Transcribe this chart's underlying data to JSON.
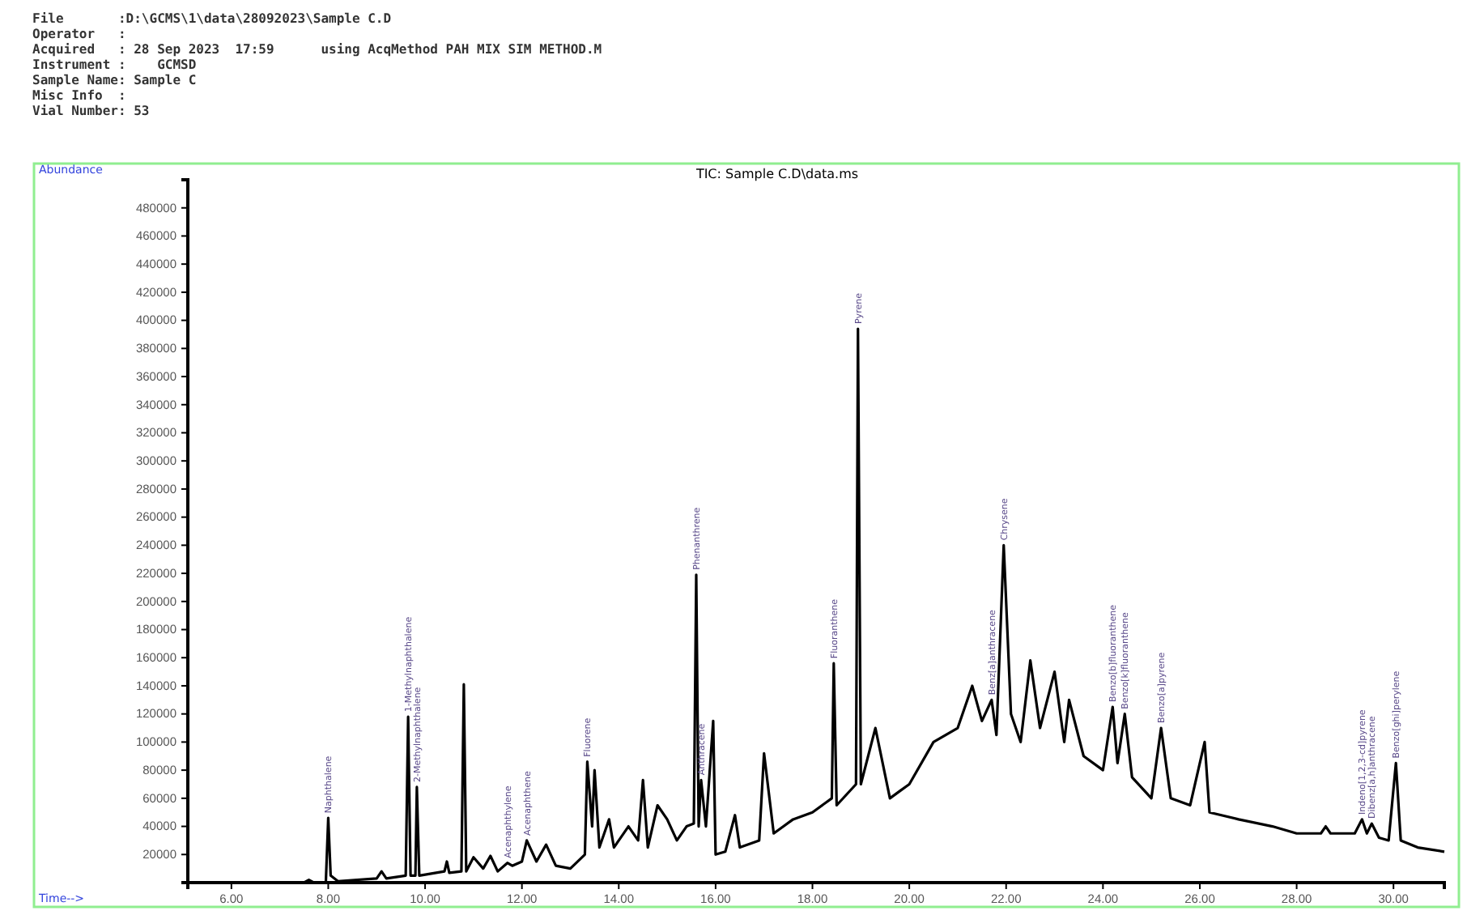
{
  "chart_data": {
    "type": "line",
    "title": "TIC: Sample C.D\\data.ms",
    "xlabel": "Time-->",
    "ylabel": "Abundance",
    "annotations": [
      "File       :D:\\GCMS\\1\\data\\28092023\\Sample C.D",
      "Operator   :",
      "Acquired   : 28 Sep 2023  17:59      using AcqMethod PAH MIX SIM METHOD.M",
      "Instrument :    GCMSD",
      "Sample Name: Sample C",
      "Misc Info  :",
      "Vial Number: 53",
      {
        "text": "Naphthalene",
        "x": 8.0,
        "y": 46000
      },
      {
        "text": "1-Methylnaphthalene",
        "x": 9.65,
        "y": 118000
      },
      {
        "text": "2-Methylnaphthalene",
        "x": 9.83,
        "y": 68000
      },
      {
        "text": "Acenaphthylene",
        "x": 11.7,
        "y": 14000
      },
      {
        "text": "Acenaphthene",
        "x": 12.1,
        "y": 30000
      },
      {
        "text": "Fluorene",
        "x": 13.35,
        "y": 86000
      },
      {
        "text": "Phenanthrene",
        "x": 15.6,
        "y": 219000
      },
      {
        "text": "Anthracene",
        "x": 15.7,
        "y": 73000
      },
      {
        "text": "Fluoranthene",
        "x": 18.44,
        "y": 156000
      },
      {
        "text": "Pyrene",
        "x": 18.94,
        "y": 394000
      },
      {
        "text": "Benz[a]anthracene",
        "x": 21.7,
        "y": 130000
      },
      {
        "text": "Chrysene",
        "x": 21.95,
        "y": 240000
      },
      {
        "text": "Benzo[b]fluoranthene",
        "x": 24.2,
        "y": 125000
      },
      {
        "text": "Benzo[k]fluoranthene",
        "x": 24.45,
        "y": 120000
      },
      {
        "text": "Benzo[a]pyrene",
        "x": 25.2,
        "y": 110000
      },
      {
        "text": "Indeno[1,2,3-cd]pyrene",
        "x": 29.35,
        "y": 45000
      },
      {
        "text": "Dibenz[a,h]anthracene",
        "x": 29.55,
        "y": 42000
      },
      {
        "text": "Benzo[ghi]perylene",
        "x": 30.05,
        "y": 85000
      }
    ],
    "series": [
      {
        "color": "#000000",
        "x": [
          5.1,
          7.5,
          7.6,
          7.7,
          7.95,
          8.0,
          8.05,
          8.2,
          9.0,
          9.1,
          9.2,
          9.6,
          9.65,
          9.7,
          9.8,
          9.83,
          9.88,
          10.4,
          10.45,
          10.5,
          10.75,
          10.8,
          10.85,
          11.0,
          11.2,
          11.35,
          11.5,
          11.7,
          11.8,
          12.0,
          12.1,
          12.3,
          12.5,
          12.7,
          13.0,
          13.3,
          13.35,
          13.45,
          13.5,
          13.6,
          13.8,
          13.9,
          14.2,
          14.4,
          14.5,
          14.6,
          14.8,
          15.0,
          15.2,
          15.4,
          15.55,
          15.6,
          15.65,
          15.7,
          15.8,
          15.95,
          16.0,
          16.2,
          16.4,
          16.5,
          16.9,
          17.0,
          17.2,
          17.6,
          18.0,
          18.4,
          18.44,
          18.5,
          18.9,
          18.94,
          19.0,
          19.3,
          19.6,
          19.8,
          20.0,
          20.5,
          21.0,
          21.3,
          21.5,
          21.7,
          21.8,
          21.95,
          22.1,
          22.3,
          22.5,
          22.7,
          23.0,
          23.2,
          23.3,
          23.6,
          24.0,
          24.2,
          24.3,
          24.45,
          24.6,
          25.0,
          25.2,
          25.4,
          25.8,
          26.1,
          26.2,
          26.8,
          27.5,
          28.0,
          28.5,
          28.6,
          28.7,
          29.2,
          29.35,
          29.45,
          29.55,
          29.7,
          29.9,
          30.05,
          30.15,
          30.5,
          31.05
        ],
        "values": [
          0,
          0,
          2000,
          0,
          0,
          46000,
          5000,
          1000,
          3000,
          8000,
          3000,
          5000,
          118000,
          5000,
          5000,
          68000,
          5000,
          8000,
          15000,
          7000,
          8000,
          141000,
          8000,
          18000,
          10000,
          19000,
          8000,
          14000,
          12000,
          15000,
          30000,
          15000,
          27000,
          12000,
          10000,
          20000,
          86000,
          40000,
          80000,
          25000,
          45000,
          25000,
          40000,
          30000,
          73000,
          25000,
          55000,
          45000,
          30000,
          40000,
          42000,
          219000,
          40000,
          73000,
          40000,
          115000,
          20000,
          22000,
          48000,
          25000,
          30000,
          92000,
          35000,
          45000,
          50000,
          60000,
          156000,
          55000,
          70000,
          394000,
          70000,
          110000,
          60000,
          65000,
          70000,
          100000,
          110000,
          140000,
          115000,
          130000,
          105000,
          240000,
          120000,
          100000,
          158000,
          110000,
          150000,
          100000,
          130000,
          90000,
          80000,
          125000,
          85000,
          120000,
          75000,
          60000,
          110000,
          60000,
          55000,
          100000,
          50000,
          45000,
          40000,
          35000,
          35000,
          40000,
          35000,
          35000,
          45000,
          35000,
          42000,
          32000,
          30000,
          85000,
          30000,
          25000,
          22000
        ]
      }
    ],
    "xlim": [
      5.1,
      31.05
    ],
    "ylim": [
      0,
      500000
    ],
    "xticks": [
      {
        "value": 6,
        "label": "6.00"
      },
      {
        "value": 8,
        "label": "8.00"
      },
      {
        "value": 10,
        "label": "10.00"
      },
      {
        "value": 12,
        "label": "12.00"
      },
      {
        "value": 14,
        "label": "14.00"
      },
      {
        "value": 16,
        "label": "16.00"
      },
      {
        "value": 18,
        "label": "18.00"
      },
      {
        "value": 20,
        "label": "20.00"
      },
      {
        "value": 22,
        "label": "22.00"
      },
      {
        "value": 24,
        "label": "24.00"
      },
      {
        "value": 26,
        "label": "26.00"
      },
      {
        "value": 28,
        "label": "28.00"
      },
      {
        "value": 30,
        "label": "30.00"
      }
    ],
    "yticks": [
      20000,
      40000,
      60000,
      80000,
      100000,
      120000,
      140000,
      160000,
      180000,
      200000,
      220000,
      240000,
      260000,
      280000,
      300000,
      320000,
      340000,
      360000,
      380000,
      400000,
      420000,
      440000,
      460000,
      480000
    ],
    "grid": false,
    "marker": "none",
    "line_style": "solid"
  }
}
